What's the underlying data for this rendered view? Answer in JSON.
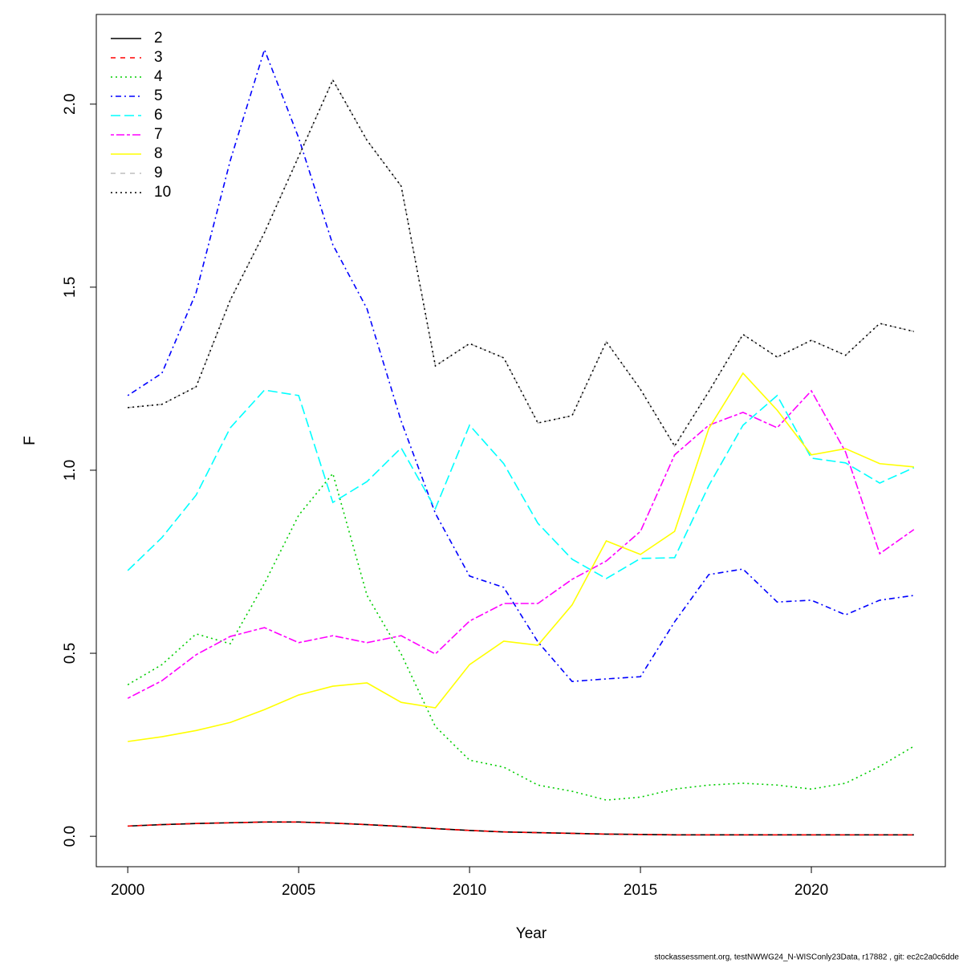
{
  "chart_data": {
    "type": "line",
    "xlabel": "Year",
    "ylabel": "F",
    "footer": "stockassessment.org, testNWWG24_N-WISConly23Data, r17882 , git: ec2c2a0c6dde",
    "x": [
      2000,
      2001,
      2002,
      2003,
      2004,
      2005,
      2006,
      2007,
      2008,
      2009,
      2010,
      2011,
      2012,
      2013,
      2014,
      2015,
      2016,
      2017,
      2018,
      2019,
      2020,
      2021,
      2022,
      2023
    ],
    "xlim": [
      1999.08,
      2023.92
    ],
    "xticks": [
      2000,
      2005,
      2010,
      2015,
      2020
    ],
    "ylim": [
      -0.083,
      2.245
    ],
    "yticks": [
      {
        "value": 0,
        "label": "0.0"
      },
      0.5,
      {
        "value": 1,
        "label": "1.0"
      },
      1.5,
      {
        "value": 2,
        "label": "2.0"
      }
    ],
    "legend": "top-left",
    "series": [
      {
        "name": "2",
        "color": "#000000",
        "linestyle": "solid",
        "values": [
          0.028,
          0.032,
          0.035,
          0.037,
          0.039,
          0.039,
          0.036,
          0.032,
          0.027,
          0.021,
          0.016,
          0.012,
          0.01,
          0.008,
          0.006,
          0.005,
          0.004,
          0.004,
          0.004,
          0.004,
          0.004,
          0.004,
          0.004,
          0.004
        ]
      },
      {
        "name": "3",
        "color": "#ff0000",
        "linestyle": "dashed",
        "values": [
          0.028,
          0.032,
          0.035,
          0.037,
          0.039,
          0.039,
          0.036,
          0.032,
          0.027,
          0.021,
          0.016,
          0.012,
          0.01,
          0.008,
          0.006,
          0.005,
          0.004,
          0.004,
          0.004,
          0.004,
          0.004,
          0.004,
          0.004,
          0.004
        ]
      },
      {
        "name": "4",
        "color": "#00cd00",
        "linestyle": "dotted",
        "values": [
          0.414,
          0.469,
          0.553,
          0.526,
          0.691,
          0.877,
          0.991,
          0.658,
          0.498,
          0.3,
          0.208,
          0.189,
          0.14,
          0.123,
          0.099,
          0.107,
          0.129,
          0.14,
          0.145,
          0.14,
          0.129,
          0.145,
          0.191,
          0.246
        ]
      },
      {
        "name": "5",
        "color": "#0000ff",
        "linestyle": "dotdash",
        "values": [
          1.204,
          1.265,
          1.485,
          1.846,
          2.149,
          1.908,
          1.616,
          1.441,
          1.134,
          0.882,
          0.711,
          0.68,
          0.531,
          0.423,
          0.43,
          0.436,
          0.586,
          0.715,
          0.73,
          0.64,
          0.645,
          0.605,
          0.645,
          0.658
        ]
      },
      {
        "name": "6",
        "color": "#00ffff",
        "linestyle": "longdash",
        "values": [
          0.726,
          0.816,
          0.932,
          1.116,
          1.219,
          1.204,
          0.912,
          0.969,
          1.061,
          0.895,
          1.123,
          1.018,
          0.855,
          0.757,
          0.704,
          0.759,
          0.761,
          0.958,
          1.123,
          1.204,
          1.033,
          1.02,
          0.965,
          1.007
        ]
      },
      {
        "name": "7",
        "color": "#ff00ff",
        "linestyle": "twodash",
        "values": [
          0.377,
          0.425,
          0.496,
          0.546,
          0.57,
          0.529,
          0.548,
          0.529,
          0.548,
          0.498,
          0.588,
          0.636,
          0.636,
          0.702,
          0.752,
          0.833,
          1.042,
          1.123,
          1.158,
          1.116,
          1.217,
          1.05,
          0.772,
          0.838
        ]
      },
      {
        "name": "8",
        "color": "#ffff00",
        "linestyle": "solid",
        "values": [
          0.259,
          0.272,
          0.289,
          0.311,
          0.346,
          0.386,
          0.41,
          0.419,
          0.366,
          0.351,
          0.469,
          0.533,
          0.522,
          0.632,
          0.807,
          0.77,
          0.833,
          1.114,
          1.265,
          1.164,
          1.042,
          1.059,
          1.018,
          1.009
        ]
      },
      {
        "name": "9",
        "color": "#bebebe",
        "linestyle": "dashed",
        "values": [
          1.171,
          1.18,
          1.228,
          1.465,
          1.649,
          1.857,
          2.066,
          1.901,
          1.776,
          1.285,
          1.346,
          1.307,
          1.129,
          1.149,
          1.351,
          1.221,
          1.066,
          1.215,
          1.371,
          1.309,
          1.355,
          1.314,
          1.401,
          1.379
        ]
      },
      {
        "name": "10",
        "color": "#000000",
        "linestyle": "dotted",
        "values": [
          1.171,
          1.18,
          1.228,
          1.465,
          1.649,
          1.857,
          2.066,
          1.901,
          1.776,
          1.285,
          1.346,
          1.307,
          1.129,
          1.149,
          1.351,
          1.221,
          1.066,
          1.215,
          1.371,
          1.309,
          1.355,
          1.314,
          1.401,
          1.379
        ]
      }
    ]
  }
}
